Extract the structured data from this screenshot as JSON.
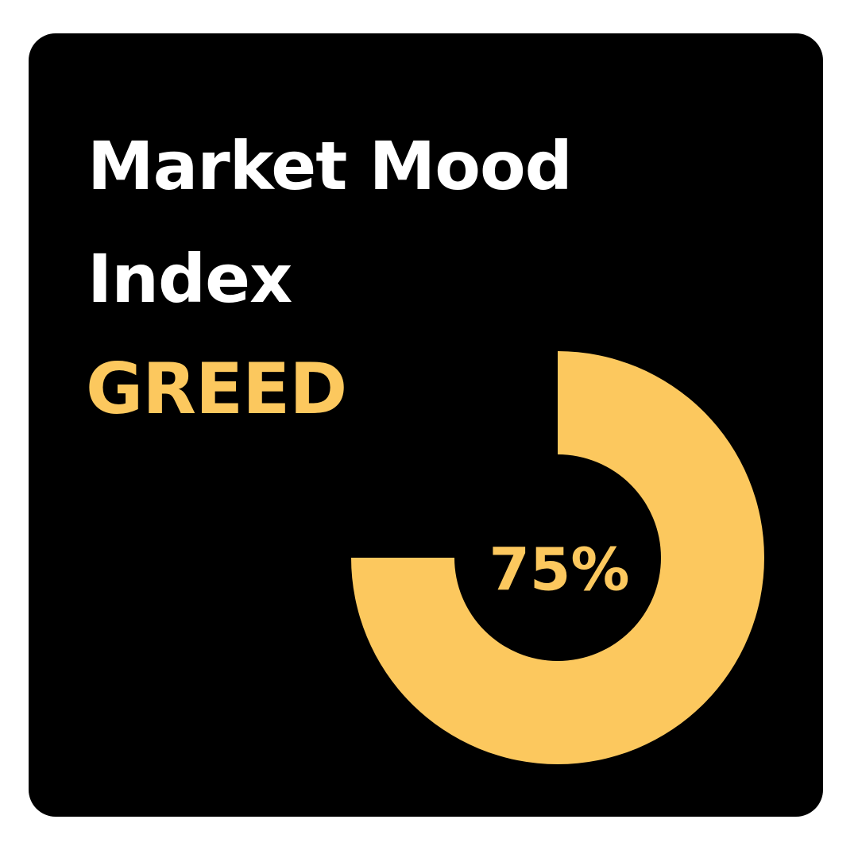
{
  "card": {
    "title_line1": "Market Mood",
    "title_line2": "Index",
    "status_label": "GREED"
  },
  "colors": {
    "background": "#000000",
    "title": "#ffffff",
    "accent": "#FCC85E"
  },
  "chart_data": {
    "type": "pie",
    "title": "",
    "value_label": "75%",
    "slices": [
      {
        "label": "GREED",
        "value": 75,
        "color": "#FCC85E"
      },
      {
        "label": "",
        "value": 25,
        "color": "#000000"
      }
    ]
  }
}
